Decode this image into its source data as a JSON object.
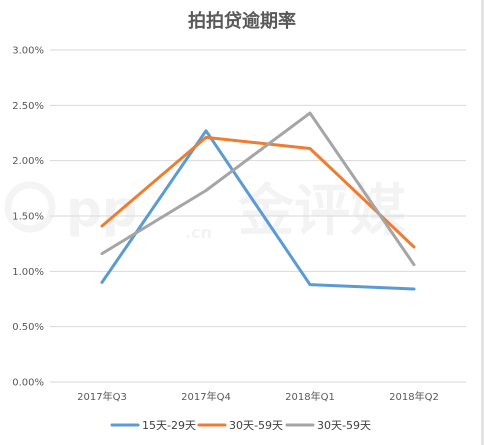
{
  "chart_data": {
    "type": "line",
    "title": "拍拍贷逾期率",
    "xlabel": "",
    "ylabel": "",
    "categories": [
      "2017年Q3",
      "2017年Q4",
      "2018年Q1",
      "2018年Q2"
    ],
    "ylim": [
      0,
      3.0
    ],
    "yticks": [
      0,
      0.5,
      1.0,
      1.5,
      2.0,
      2.5,
      3.0
    ],
    "ytick_labels": [
      "0.00%",
      "0.50%",
      "1.00%",
      "1.50%",
      "2.00%",
      "2.50%",
      "3.00%"
    ],
    "grid": true,
    "legend_position": "bottom",
    "series": [
      {
        "name": "15天-29天",
        "color": "#5b9bd5",
        "values": [
          0.9,
          2.27,
          0.88,
          0.84
        ]
      },
      {
        "name": "30天-59天",
        "color": "#ed7d31",
        "values": [
          1.41,
          2.21,
          2.11,
          1.22
        ]
      },
      {
        "name": "30天-59天",
        "color": "#a5a5a5",
        "values": [
          1.16,
          1.73,
          2.43,
          1.06
        ]
      }
    ]
  },
  "watermark": {
    "logo_text": "pp",
    "suffix_text": ".cn",
    "brand_text": "金评媒"
  }
}
